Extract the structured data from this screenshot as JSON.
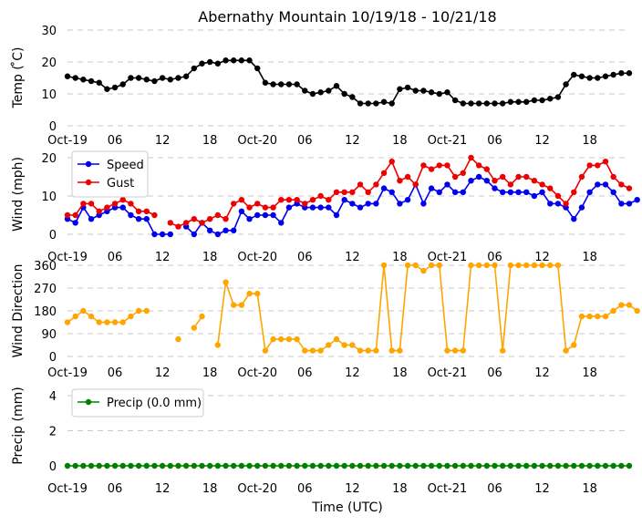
{
  "title": "Abernathy Mountain 10/19/18 - 10/21/18",
  "xlabel": "Time (UTC)",
  "x_tick_labels": [
    "Oct-19",
    "06",
    "12",
    "18",
    "Oct-20",
    "06",
    "12",
    "18",
    "Oct-21",
    "06",
    "12",
    "18"
  ],
  "chart_data": [
    {
      "id": "temp",
      "type": "line",
      "ylabel": "Temp ( ̊C)",
      "ylim": [
        0,
        30
      ],
      "yticks": [
        0,
        10,
        20,
        30
      ],
      "x_hours_start": 0,
      "x_step_hours": 1,
      "series": [
        {
          "name": "Temp",
          "color": "#000000",
          "values": [
            15.5,
            15,
            14.5,
            14,
            13.5,
            11.5,
            12,
            13,
            15,
            15,
            14.5,
            14,
            15,
            14.5,
            15,
            15.5,
            18,
            19.5,
            20,
            19.5,
            20.5,
            20.5,
            20.5,
            20.5,
            18,
            13.5,
            13,
            13,
            13,
            13,
            11,
            10,
            10.5,
            11,
            12.5,
            10,
            9,
            7,
            7,
            7,
            7.5,
            7,
            11.5,
            12,
            11,
            11,
            10.5,
            10,
            10.5,
            8,
            7,
            7,
            7,
            7,
            7,
            7,
            7.5,
            7.5,
            7.5,
            8,
            8,
            8.5,
            9,
            13,
            16,
            15.5,
            15,
            15,
            15.5,
            16,
            16.5,
            16.5
          ]
        }
      ]
    },
    {
      "id": "wind",
      "type": "line",
      "ylabel": "Wind (mph)",
      "ylim": [
        0,
        22
      ],
      "yticks": [
        0,
        10,
        20
      ],
      "x_hours_start": 0,
      "x_step_hours": 1,
      "legend": "top-left",
      "series": [
        {
          "name": "Speed",
          "color": "#0000ee",
          "values": [
            4,
            3,
            7,
            4,
            5,
            6,
            7,
            7,
            5,
            4,
            4,
            0,
            0,
            0,
            null,
            2,
            0,
            3,
            1,
            0,
            1,
            1,
            6,
            4,
            5,
            5,
            5,
            3,
            7,
            8,
            7,
            7,
            7,
            7,
            5,
            9,
            8,
            7,
            8,
            8,
            12,
            11,
            8,
            9,
            13,
            8,
            12,
            11,
            13,
            11,
            11,
            14,
            15,
            14,
            12,
            11,
            11,
            11,
            11,
            10,
            11,
            8,
            8,
            7,
            4,
            7,
            11,
            13,
            13,
            11,
            8,
            8,
            9
          ]
        },
        {
          "name": "Gust",
          "color": "#ee0000",
          "values": [
            5,
            5,
            8,
            8,
            6,
            7,
            8,
            9,
            8,
            6,
            6,
            5,
            null,
            3,
            2,
            3,
            4,
            3,
            4,
            5,
            4,
            8,
            9,
            7,
            8,
            7,
            7,
            9,
            9,
            9,
            8,
            9,
            10,
            9,
            11,
            11,
            11,
            13,
            11,
            13,
            16,
            19,
            14,
            15,
            13,
            18,
            17,
            18,
            18,
            15,
            16,
            20,
            18,
            17,
            14,
            15,
            13,
            15,
            15,
            14,
            13,
            12,
            10,
            8,
            11,
            15,
            18,
            18,
            19,
            15,
            13,
            12
          ]
        }
      ]
    },
    {
      "id": "direction",
      "type": "line",
      "ylabel": "Wind Direction",
      "ylim": [
        0,
        360
      ],
      "yticks": [
        0,
        90,
        180,
        270,
        360
      ],
      "x_hours_start": 0,
      "x_step_hours": 1,
      "series": [
        {
          "name": "Direction",
          "color": "#ffa500",
          "values": [
            135,
            158,
            180,
            158,
            135,
            135,
            135,
            135,
            158,
            180,
            180,
            null,
            null,
            null,
            68,
            null,
            113,
            158,
            null,
            45,
            293,
            203,
            203,
            248,
            248,
            23,
            68,
            68,
            68,
            68,
            23,
            23,
            23,
            45,
            68,
            45,
            45,
            23,
            23,
            23,
            360,
            23,
            23,
            360,
            360,
            338,
            360,
            360,
            23,
            23,
            23,
            360,
            360,
            360,
            360,
            23,
            360,
            360,
            360,
            360,
            360,
            360,
            360,
            23,
            45,
            158,
            158,
            158,
            158,
            180,
            203,
            203,
            180
          ]
        }
      ]
    },
    {
      "id": "precip",
      "type": "line",
      "ylabel": "Precip (mm)",
      "ylim": [
        0,
        4.6
      ],
      "yticks": [
        0,
        2,
        4
      ],
      "x_hours_start": 0,
      "x_step_hours": 1,
      "legend": "top-left",
      "series": [
        {
          "name": "Precip (0.0 mm)",
          "color": "#008000",
          "values": [
            0,
            0,
            0,
            0,
            0,
            0,
            0,
            0,
            0,
            0,
            0,
            0,
            0,
            0,
            0,
            0,
            0,
            0,
            0,
            0,
            0,
            0,
            0,
            0,
            0,
            0,
            0,
            0,
            0,
            0,
            0,
            0,
            0,
            0,
            0,
            0,
            0,
            0,
            0,
            0,
            0,
            0,
            0,
            0,
            0,
            0,
            0,
            0,
            0,
            0,
            0,
            0,
            0,
            0,
            0,
            0,
            0,
            0,
            0,
            0,
            0,
            0,
            0,
            0,
            0,
            0,
            0,
            0,
            0,
            0,
            0,
            0
          ]
        }
      ]
    }
  ]
}
